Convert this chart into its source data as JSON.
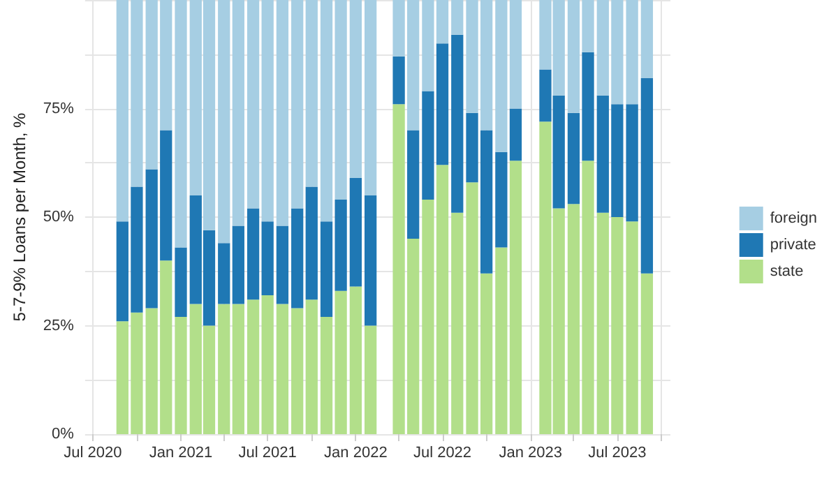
{
  "chart_data": {
    "type": "bar",
    "stacked": true,
    "ylabel": "5-7-9% Loans per Month, %",
    "x": [
      "2020-09",
      "2020-10",
      "2020-11",
      "2020-12",
      "2021-01",
      "2021-02",
      "2021-03",
      "2021-04",
      "2021-05",
      "2021-06",
      "2021-07",
      "2021-08",
      "2021-09",
      "2021-10",
      "2021-11",
      "2021-12",
      "2022-01",
      "2022-02",
      "2022-04",
      "2022-05",
      "2022-06",
      "2022-07",
      "2022-08",
      "2022-09",
      "2022-10",
      "2022-11",
      "2022-12",
      "2023-02",
      "2023-03",
      "2023-04",
      "2023-05",
      "2023-06",
      "2023-07",
      "2023-08",
      "2023-09"
    ],
    "series": [
      {
        "name": "state",
        "color": "#b2df8a",
        "values": [
          26,
          28,
          29,
          40,
          27,
          30,
          25,
          30,
          30,
          31,
          32,
          30,
          29,
          31,
          27,
          33,
          34,
          25,
          76,
          45,
          54,
          62,
          51,
          58,
          37,
          43,
          63,
          72,
          52,
          53,
          63,
          51,
          50,
          49,
          37
        ]
      },
      {
        "name": "private",
        "color": "#1f78b4",
        "values": [
          23,
          29,
          32,
          30,
          16,
          25,
          22,
          14,
          18,
          21,
          17,
          18,
          23,
          26,
          22,
          21,
          25,
          30,
          11,
          25,
          25,
          28,
          41,
          16,
          33,
          22,
          12,
          12,
          26,
          21,
          25,
          27,
          26,
          27,
          45
        ]
      },
      {
        "name": "foreign",
        "color": "#a6cee3",
        "values": [
          51,
          43,
          39,
          30,
          57,
          45,
          53,
          56,
          52,
          48,
          51,
          52,
          48,
          43,
          51,
          46,
          41,
          45,
          13,
          30,
          21,
          10,
          8,
          26,
          30,
          35,
          25,
          16,
          22,
          26,
          12,
          22,
          24,
          24,
          18
        ]
      }
    ],
    "ylim": [
      0,
      100
    ],
    "yticks": [
      {
        "value": 0,
        "label": "0%"
      },
      {
        "value": 12.5,
        "label": null
      },
      {
        "value": 25,
        "label": "25%"
      },
      {
        "value": 37.5,
        "label": null
      },
      {
        "value": 50,
        "label": "50%"
      },
      {
        "value": 62.5,
        "label": null
      },
      {
        "value": 75,
        "label": "75%"
      },
      {
        "value": 87.5,
        "label": null
      },
      {
        "value": 100,
        "label": null
      }
    ],
    "xlim": [
      "2020-06-15",
      "2023-10-20"
    ],
    "xticks": [
      {
        "value": "2020-07",
        "label": "Jul 2020"
      },
      {
        "value": "2020-10",
        "label": null
      },
      {
        "value": "2021-01",
        "label": "Jan 2021"
      },
      {
        "value": "2021-04",
        "label": null
      },
      {
        "value": "2021-07",
        "label": "Jul 2021"
      },
      {
        "value": "2021-10",
        "label": null
      },
      {
        "value": "2022-01",
        "label": "Jan 2022"
      },
      {
        "value": "2022-04",
        "label": null
      },
      {
        "value": "2022-07",
        "label": "Jul 2022"
      },
      {
        "value": "2022-10",
        "label": null
      },
      {
        "value": "2023-01",
        "label": "Jan 2023"
      },
      {
        "value": "2023-04",
        "label": null
      },
      {
        "value": "2023-07",
        "label": "Jul 2023"
      },
      {
        "value": "2023-10",
        "label": null
      }
    ],
    "grid": true,
    "legend": "right"
  }
}
